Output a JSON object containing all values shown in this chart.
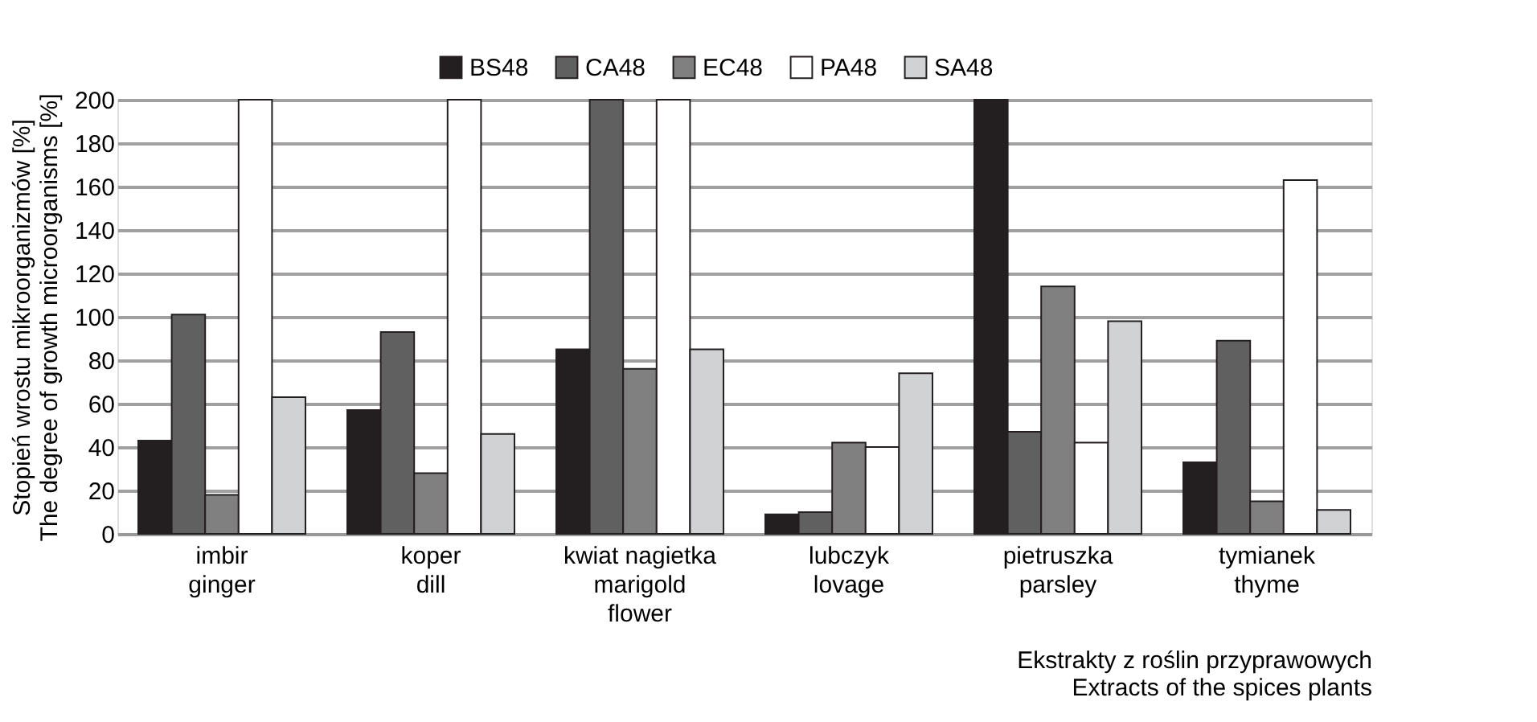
{
  "chart_data": {
    "type": "bar",
    "xlabel": "Ekstrakty z roślin przyprawowych\nExtracts of the spices plants",
    "ylabel": "Stopień wrostu mikroorganizmów [%]\nThe degree of growth microorganisms [%]",
    "categories": [
      "imbir\nginger",
      "koper\ndill",
      "kwiat nagietka\nmarigold\nflower",
      "lubczyk\nlovage",
      "pietruszka\nparsley",
      "tymianek\nthyme"
    ],
    "series": [
      {
        "name": "BS48",
        "color": "#231f20",
        "values": [
          43,
          57,
          85,
          9,
          200,
          33
        ]
      },
      {
        "name": "CA48",
        "color": "#606060",
        "values": [
          101,
          93,
          200,
          10,
          47,
          89
        ]
      },
      {
        "name": "EC48",
        "color": "#808080",
        "values": [
          18,
          28,
          76,
          42,
          114,
          15
        ]
      },
      {
        "name": "PA48",
        "color": "#ffffff",
        "values": [
          200,
          200,
          200,
          40,
          42,
          163
        ]
      },
      {
        "name": "SA48",
        "color": "#d1d2d4",
        "values": [
          63,
          46,
          85,
          74,
          98,
          11
        ]
      }
    ],
    "ylim": [
      0,
      200
    ],
    "yticks": [
      0,
      20,
      40,
      60,
      80,
      100,
      120,
      140,
      160,
      180,
      200
    ],
    "grid": "y",
    "legend": "top right"
  }
}
